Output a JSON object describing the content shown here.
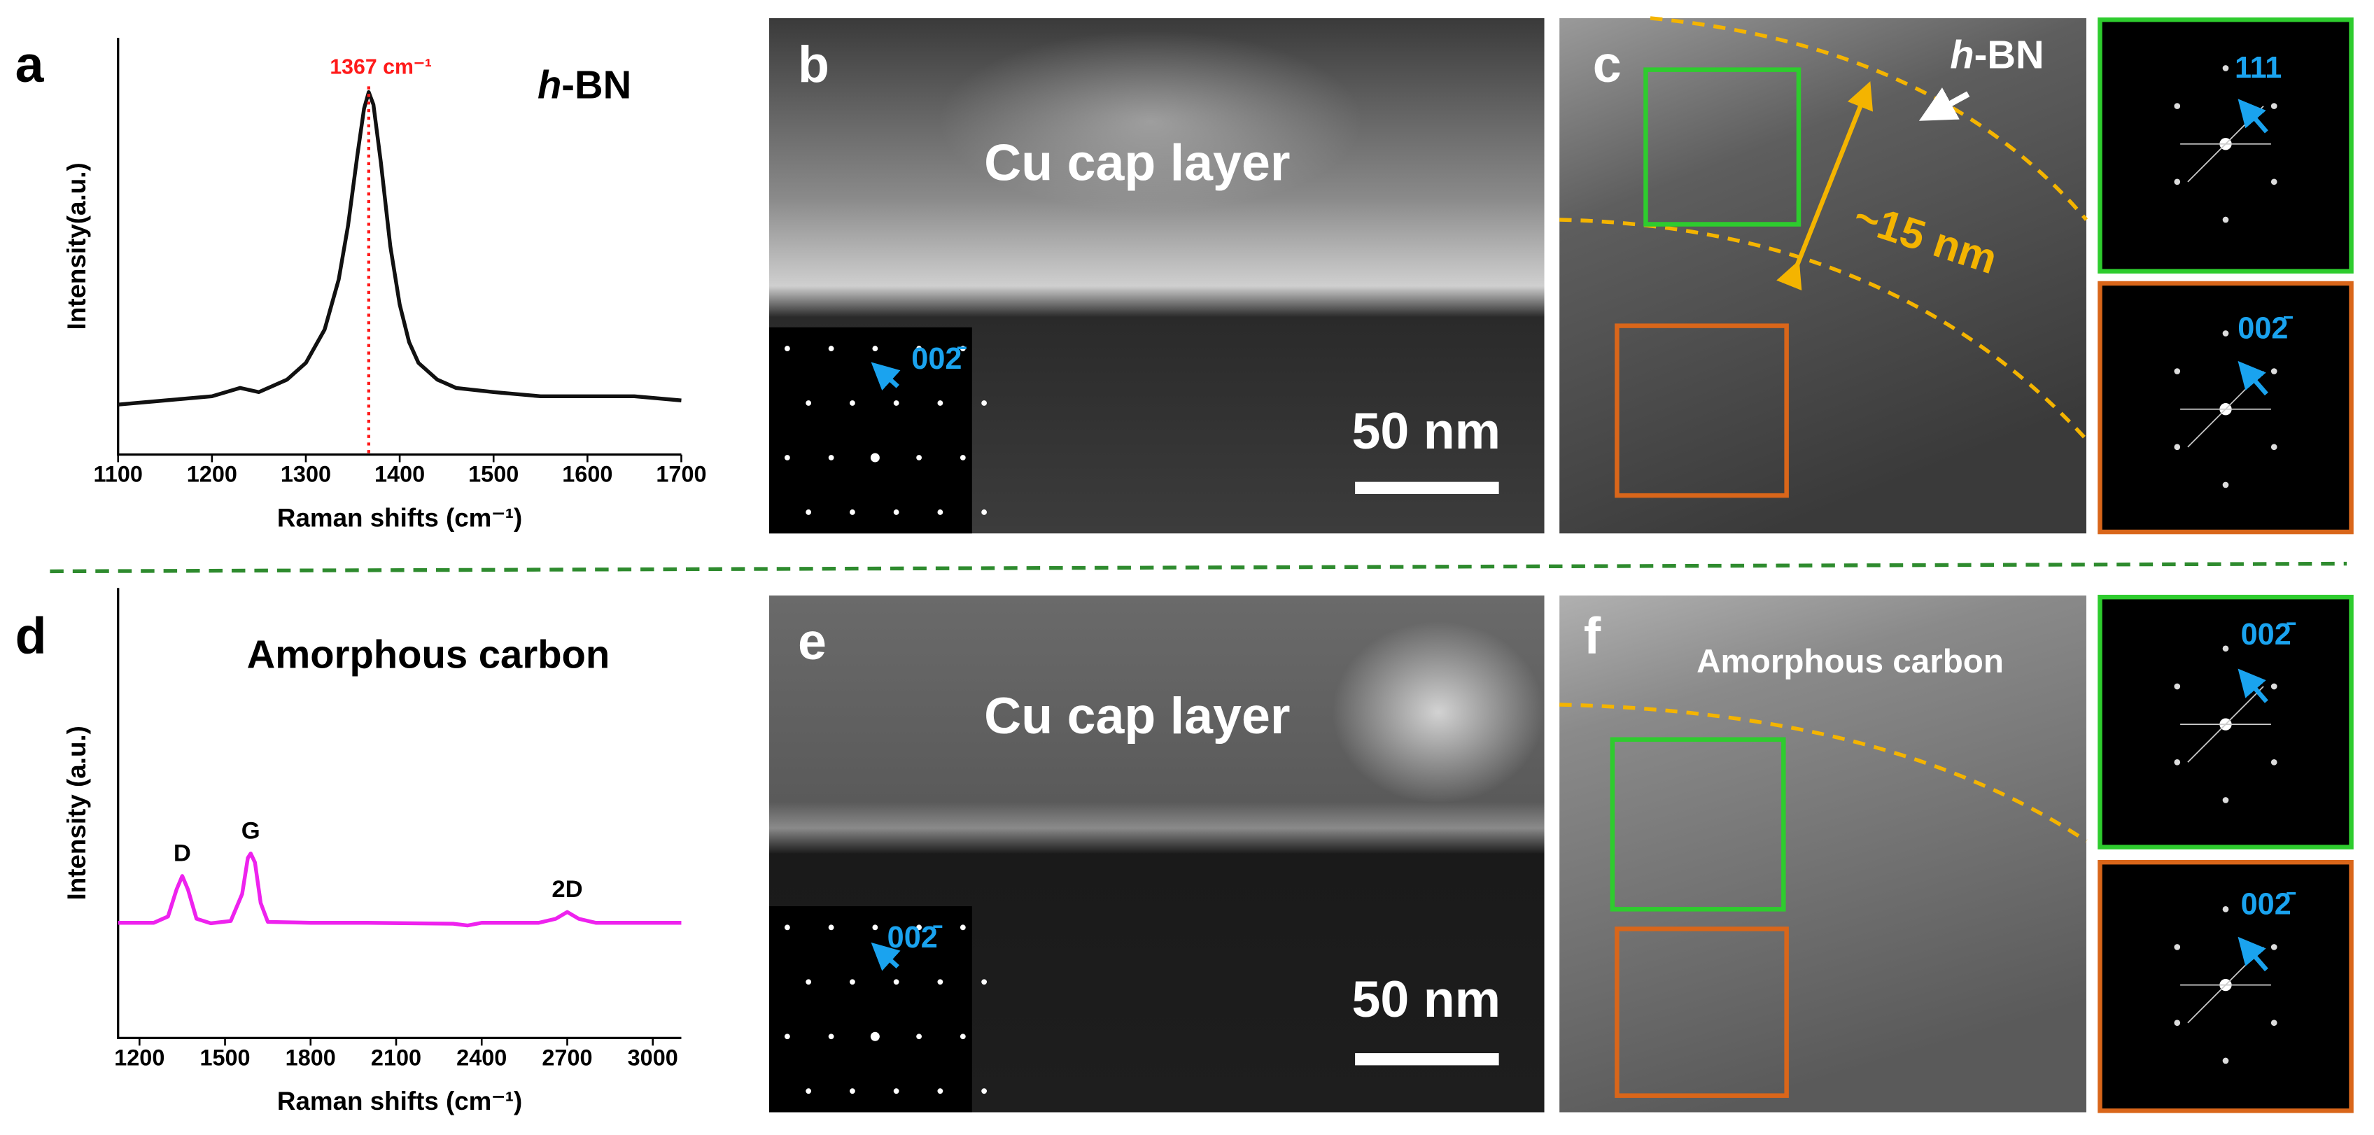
{
  "chart_data": [
    {
      "type": "line",
      "x_label": "Raman shifts (cm⁻¹)",
      "y_label": "Intensity(a.u.)",
      "annotation_italic": "h",
      "annotation": "-BN",
      "reference_line": {
        "x": 1367,
        "label": "1367 cm⁻¹",
        "color": "#ff1a1a"
      },
      "xlim": [
        1100,
        1700
      ],
      "xticks": [
        1100,
        1200,
        1300,
        1400,
        1500,
        1600,
        1700
      ],
      "ylim": [
        0,
        100
      ],
      "x": [
        1100,
        1150,
        1200,
        1230,
        1250,
        1280,
        1300,
        1320,
        1335,
        1345,
        1355,
        1362,
        1367,
        1372,
        1380,
        1390,
        1400,
        1410,
        1420,
        1440,
        1460,
        1500,
        1550,
        1600,
        1650,
        1700
      ],
      "series": [
        {
          "color": "#111111",
          "values": [
            12,
            13,
            14,
            16,
            15,
            18,
            22,
            30,
            42,
            55,
            72,
            83,
            87,
            84,
            70,
            50,
            36,
            27,
            22,
            18,
            16,
            15,
            14,
            14,
            14,
            13
          ]
        }
      ]
    },
    {
      "type": "line",
      "x_label": "Raman shifts (cm⁻¹)",
      "y_label": "Intensity (a.u.)",
      "annotation": "Amorphous carbon",
      "peak_labels": [
        {
          "text": "D",
          "x": 1350,
          "y": 36
        },
        {
          "text": "G",
          "x": 1590,
          "y": 41
        },
        {
          "text": "2D",
          "x": 2700,
          "y": 28
        }
      ],
      "xlim": [
        1125,
        3100
      ],
      "xticks": [
        1200,
        1500,
        1800,
        2100,
        2400,
        2700,
        3000
      ],
      "ylim": [
        0,
        100
      ],
      "x": [
        1125,
        1250,
        1300,
        1330,
        1350,
        1370,
        1400,
        1450,
        1520,
        1560,
        1580,
        1590,
        1605,
        1625,
        1650,
        1800,
        2000,
        2300,
        2350,
        2400,
        2600,
        2660,
        2700,
        2740,
        2800,
        3100
      ],
      "series": [
        {
          "color": "#ee22ee",
          "values": [
            25.6,
            25.6,
            27,
            33,
            36,
            33,
            26.5,
            25.5,
            26,
            32,
            40,
            41,
            39,
            30,
            25.8,
            25.6,
            25.6,
            25.4,
            25,
            25.6,
            25.6,
            26.5,
            28,
            26.5,
            25.6,
            25.6
          ]
        }
      ]
    }
  ],
  "panels": {
    "labels": [
      "a",
      "b",
      "c",
      "d",
      "e",
      "f"
    ],
    "b": {
      "text": "Cu cap layer",
      "scale": "50 nm",
      "saed": "002̄"
    },
    "c": {
      "material_italic": "h",
      "material": "-BN",
      "thickness": "~15 nm",
      "fft_top": "111",
      "fft_bottom": "002̄"
    },
    "e": {
      "text": "Cu cap layer",
      "scale": "50 nm",
      "saed": "002̄"
    },
    "f": {
      "text": "Amorphous carbon",
      "fft_top": "002̄",
      "fft_bottom": "002̄"
    }
  }
}
